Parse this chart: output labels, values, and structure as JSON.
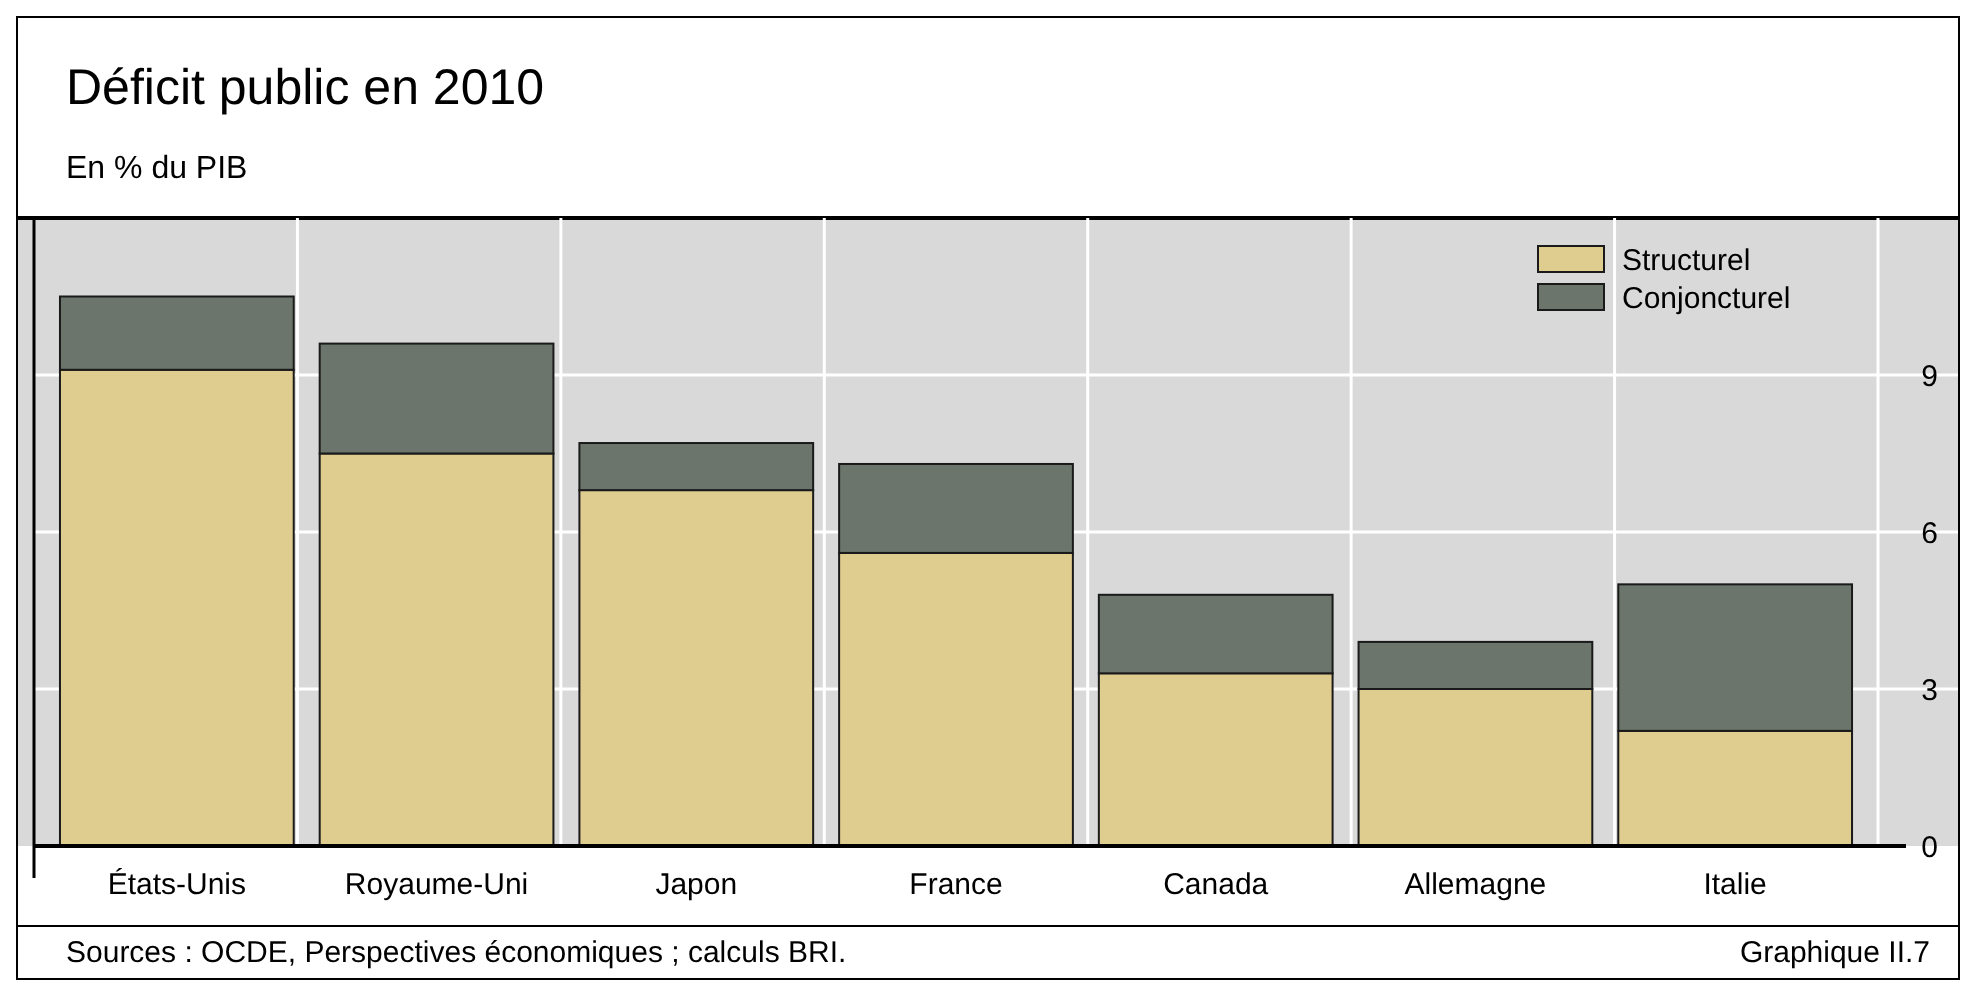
{
  "chart_data": {
    "type": "bar",
    "title": "Déficit public en 2010",
    "subtitle": "En % du PIB",
    "categories": [
      "États-Unis",
      "Royaume-Uni",
      "Japon",
      "France",
      "Canada",
      "Allemagne",
      "Italie"
    ],
    "series": [
      {
        "name": "Structurel",
        "color": "#dfcd8f",
        "values": [
          9.1,
          7.5,
          6.8,
          5.6,
          3.3,
          3.0,
          2.2
        ]
      },
      {
        "name": "Conjoncturel",
        "color": "#6b756b",
        "values": [
          1.4,
          2.1,
          0.9,
          1.7,
          1.5,
          0.9,
          2.8
        ]
      }
    ],
    "stacked": true,
    "ylim": [
      0,
      12
    ],
    "yticks": [
      0,
      3,
      6,
      9
    ],
    "grid": true,
    "legend": "top right",
    "annotations": [
      "Sources : OCDE, Perspectives économiques ; calculs BRI.",
      "Graphique II.7"
    ]
  }
}
